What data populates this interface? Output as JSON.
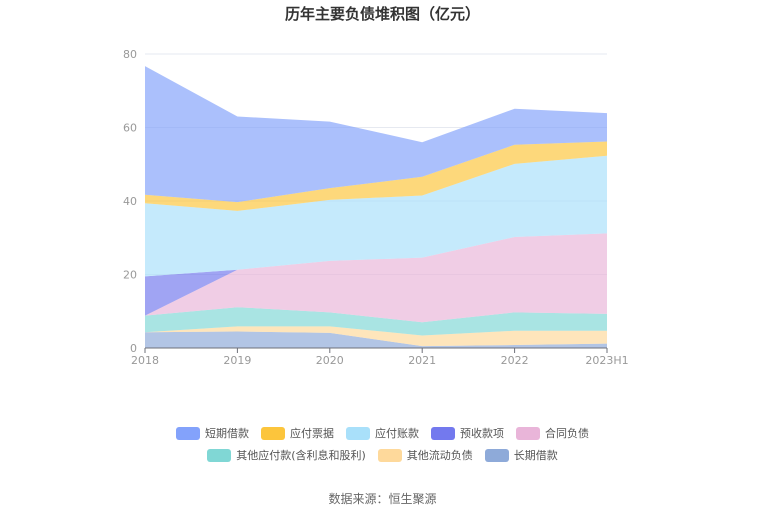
{
  "chart_data": {
    "type": "area",
    "stacked": true,
    "title": "历年主要负债堆积图（亿元）",
    "categories": [
      "2018",
      "2019",
      "2020",
      "2021",
      "2022",
      "2023H1"
    ],
    "ylim": [
      0,
      80
    ],
    "yticks": [
      0,
      20,
      40,
      60,
      80
    ],
    "grid": true,
    "legend_position": "bottom",
    "series": [
      {
        "name": "长期借款",
        "color": "#8eaad9",
        "values": [
          4.3,
          4.5,
          4.1,
          0.5,
          0.8,
          1.2
        ]
      },
      {
        "name": "其他流动负债",
        "color": "#fed99b",
        "values": [
          0,
          1.4,
          1.8,
          2.9,
          3.9,
          3.5
        ]
      },
      {
        "name": "其他应付款(含利息和股利)",
        "color": "#80d7d5",
        "values": [
          4.5,
          5.2,
          3.8,
          3.6,
          5.0,
          4.6
        ]
      },
      {
        "name": "合同负债",
        "color": "#e9b5d9",
        "values": [
          0,
          10.2,
          14.0,
          17.6,
          20.5,
          21.9
        ]
      },
      {
        "name": "预收款项",
        "color": "#7379ee",
        "values": [
          10.7,
          0,
          0,
          0,
          0,
          0
        ]
      },
      {
        "name": "应付账款",
        "color": "#a9e0fa",
        "values": [
          19.9,
          16.0,
          16.6,
          16.9,
          19.9,
          21.1
        ]
      },
      {
        "name": "应付票据",
        "color": "#fcc53c",
        "values": [
          2.3,
          2.4,
          3.2,
          5.1,
          5.2,
          3.9
        ]
      },
      {
        "name": "短期借款",
        "color": "#83a2fb",
        "values": [
          35.0,
          23.3,
          18.1,
          9.4,
          9.8,
          7.7
        ]
      }
    ]
  },
  "legend_rows": [
    [
      "短期借款",
      "应付票据",
      "应付账款",
      "预收款项",
      "合同负债"
    ],
    [
      "其他应付款(含利息和股利)",
      "其他流动负债",
      "长期借款"
    ]
  ],
  "source": "数据来源：恒生聚源"
}
